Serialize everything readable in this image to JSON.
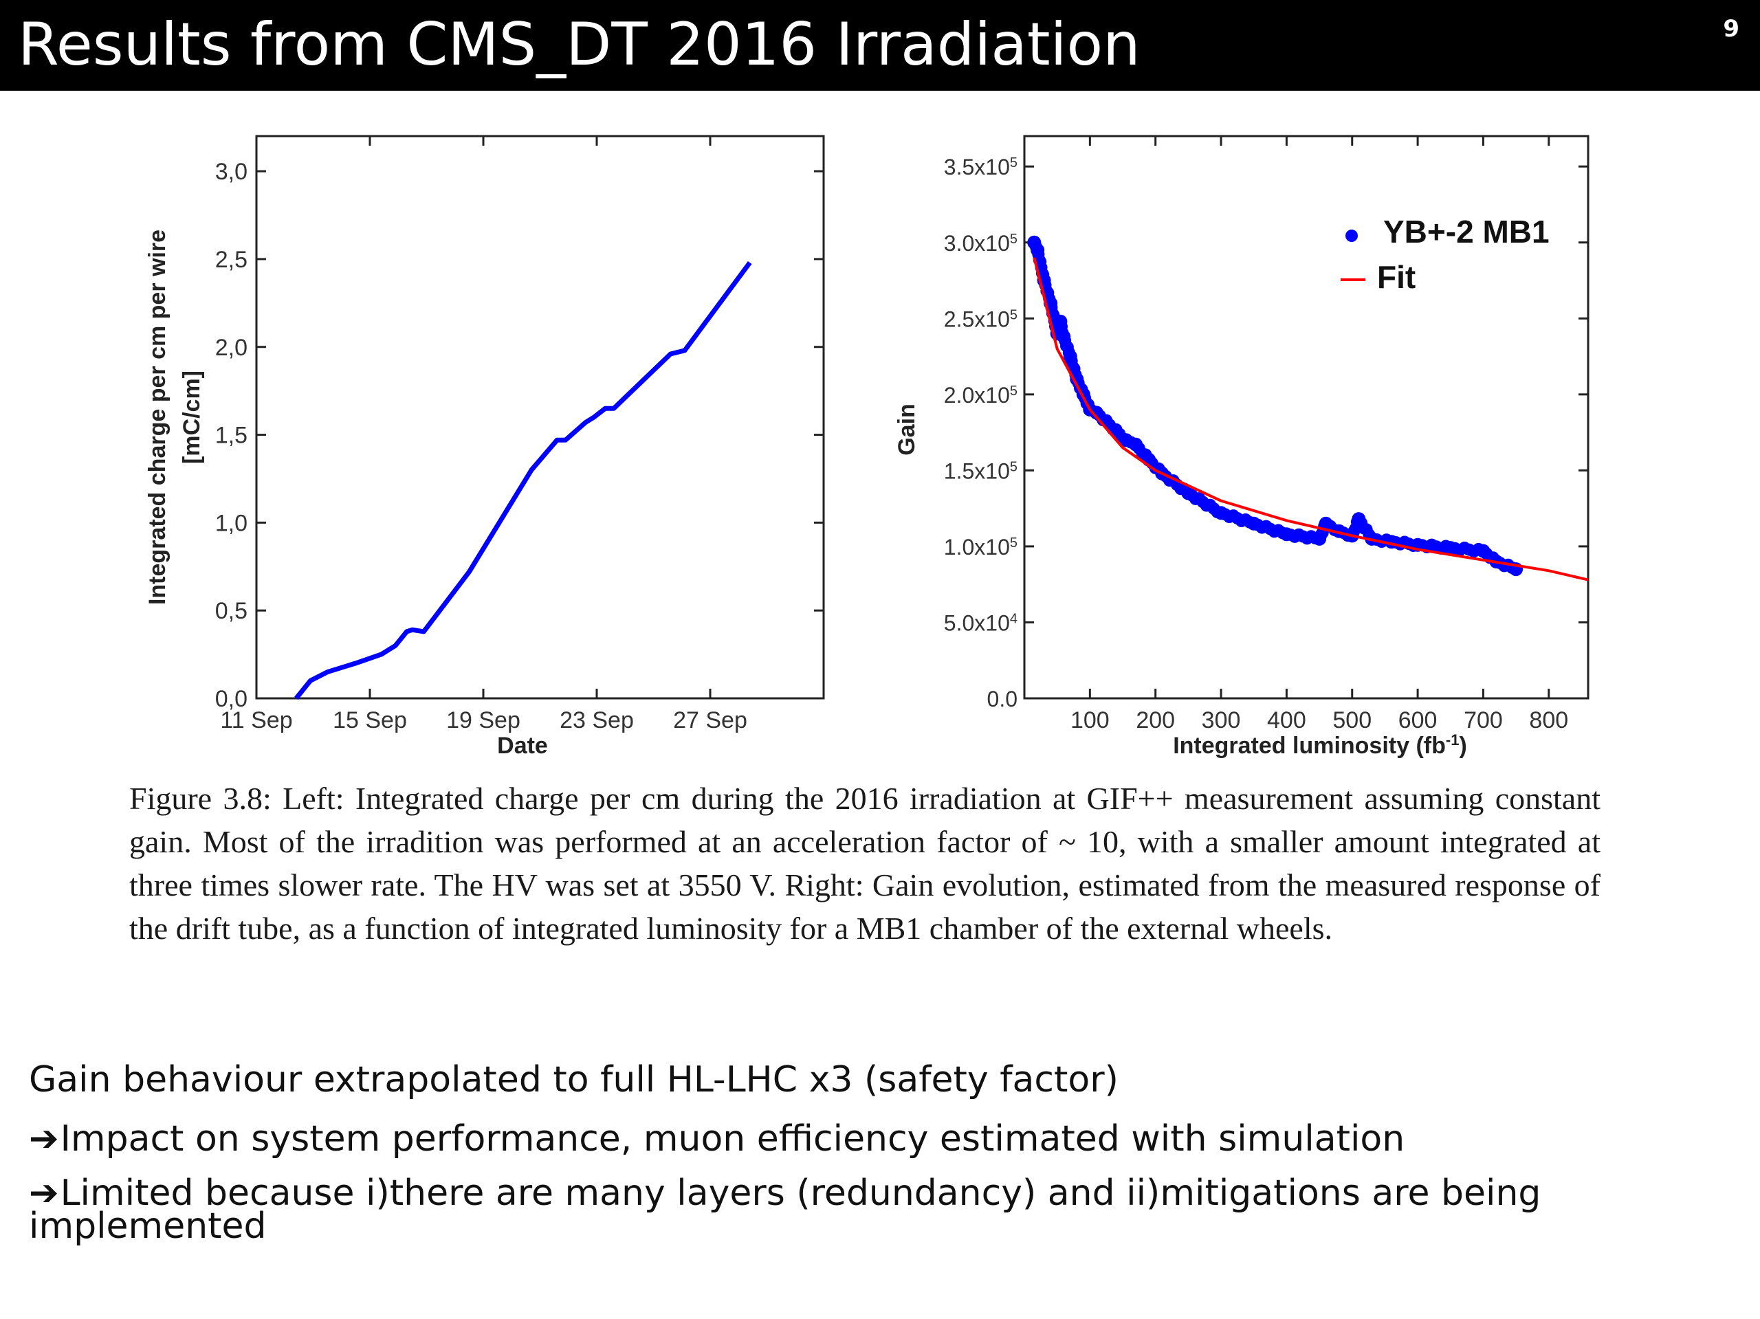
{
  "slide": {
    "title": "Results from CMS_DT 2016 Irradiation",
    "page_number": "9"
  },
  "caption": {
    "label": "Figure 3.8:",
    "text": "Left: Integrated charge per cm during the 2016 irradiation at GIF++ measurement assuming constant gain. Most of the irradition was performed at an acceleration factor of ~ 10, with a smaller amount integrated at three times slower rate. The HV was set at 3550 V. Right: Gain evolution, estimated from the measured response of the drift tube, as a function of integrated luminosity for a MB1 chamber of the external wheels."
  },
  "bullets": {
    "line1": "Gain  behaviour  extrapolated to full HL-LHC x3 (safety factor)",
    "arrow_glyph": "➔",
    "line2": "Impact on system performance, muon efficiency estimated with simulation",
    "line3": "Limited because i)there are many layers (redundancy) and ii)mitigations are  being implemented"
  },
  "chart_data": [
    {
      "type": "line",
      "xlabel": "Date",
      "ylabel_line1": "Integrated charge per cm per wire",
      "ylabel_line2": "[mC/cm]",
      "xlim_days": [
        11,
        31
      ],
      "ylim": [
        0,
        3.2
      ],
      "x_ticks": [
        "11 Sep",
        "15 Sep",
        "19 Sep",
        "23 Sep",
        "27 Sep"
      ],
      "y_ticks": [
        "0,0",
        "0,5",
        "1,0",
        "1,5",
        "2,0",
        "2,5",
        "3,0"
      ],
      "color": "#0000ff",
      "series": [
        {
          "x": [
            "2016-09-12.4",
            "2016-09-12.9",
            "2016-09-13.5",
            "2016-09-14.5",
            "2016-09-15.4",
            "2016-09-15.9",
            "2016-09-16.3",
            "2016-09-16.5",
            "2016-09-16.9",
            "2016-09-18.5",
            "2016-09-20.7",
            "2016-09-21.6",
            "2016-09-21.9",
            "2016-09-22.6",
            "2016-09-22.9",
            "2016-09-23.3",
            "2016-09-23.6",
            "2016-09-25.6",
            "2016-09-26.1",
            "2016-09-28.4"
          ],
          "y": [
            0.0,
            0.1,
            0.15,
            0.2,
            0.25,
            0.3,
            0.38,
            0.39,
            0.38,
            0.72,
            1.3,
            1.47,
            1.47,
            1.57,
            1.6,
            1.65,
            1.65,
            1.96,
            1.98,
            2.48
          ]
        }
      ]
    },
    {
      "type": "scatter",
      "xlabel": "Integrated luminosity (fb-1)",
      "ylabel": "Gain",
      "xlim": [
        0,
        860
      ],
      "ylim": [
        0,
        370000
      ],
      "x_ticks": [
        "100",
        "200",
        "300",
        "400",
        "500",
        "600",
        "700",
        "800"
      ],
      "y_ticks": [
        "0.0",
        "5.0x10^4",
        "1.0x10^5",
        "1.5x10^5",
        "2.0x10^5",
        "2.5x10^5",
        "3.0x10^5",
        "3.5x10^5"
      ],
      "legend": [
        {
          "label": "YB+-2 MB1",
          "color": "#0000ff",
          "marker": "dot"
        },
        {
          "label": "Fit",
          "color": "#ff0000",
          "marker": "line"
        }
      ],
      "legend_position": "top-right",
      "series": [
        {
          "name": "YB+-2 MB1",
          "x": [
            15,
            20,
            30,
            40,
            50,
            55,
            60,
            70,
            80,
            90,
            100,
            110,
            155,
            170,
            190,
            210,
            250,
            300,
            350,
            400,
            450,
            460,
            480,
            500,
            510,
            530,
            560,
            600,
            650,
            700,
            720,
            750
          ],
          "y": [
            300000,
            295000,
            275000,
            260000,
            240000,
            248000,
            238000,
            225000,
            210000,
            200000,
            190000,
            188000,
            170000,
            167000,
            157000,
            148000,
            135000,
            122000,
            115000,
            108000,
            105000,
            115000,
            110000,
            107000,
            118000,
            105000,
            103000,
            101000,
            99000,
            97000,
            90000,
            85000
          ]
        },
        {
          "name": "Fit",
          "x": [
            15,
            50,
            100,
            150,
            200,
            300,
            400,
            500,
            600,
            700,
            800,
            860
          ],
          "y": [
            290000,
            230000,
            190000,
            165000,
            150000,
            130000,
            117000,
            107000,
            98000,
            91000,
            84000,
            78000
          ]
        }
      ]
    }
  ]
}
